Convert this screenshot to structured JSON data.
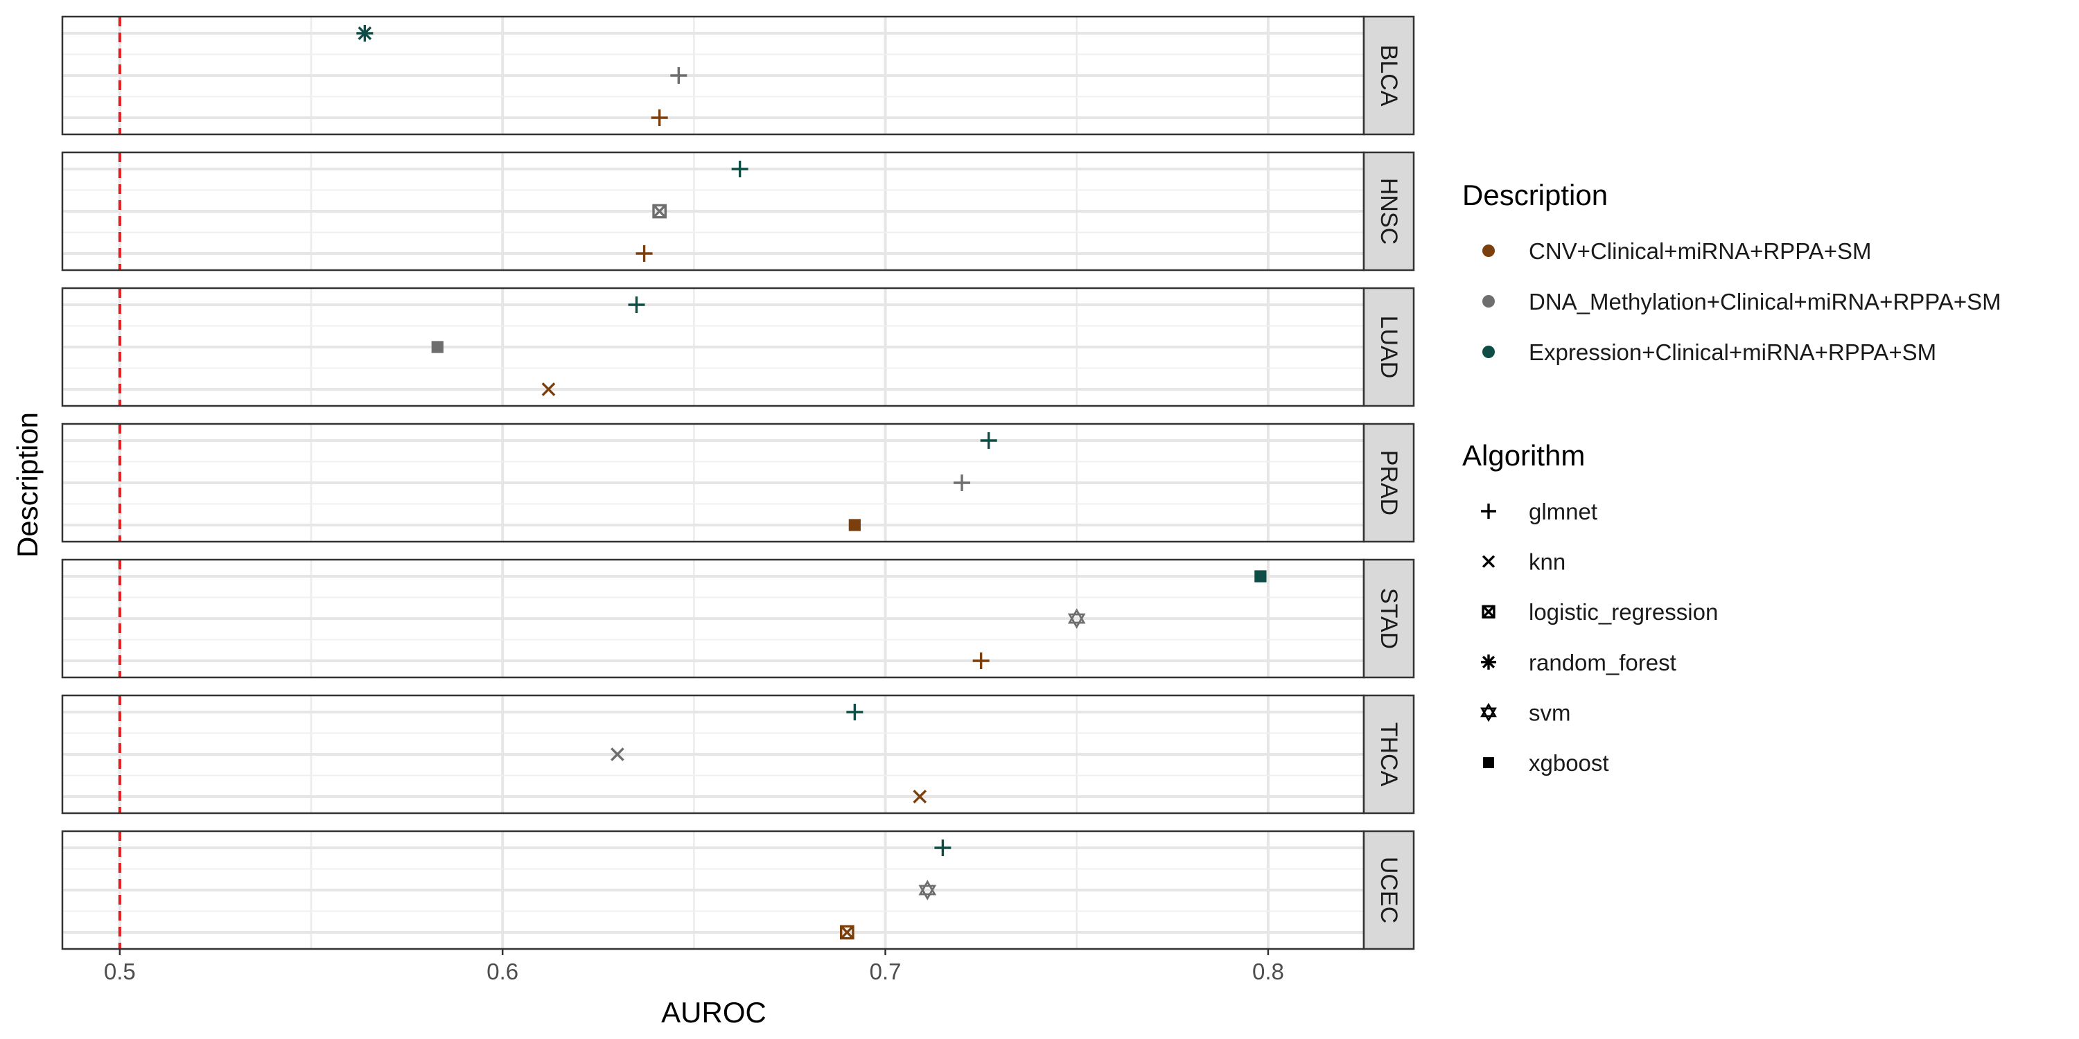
{
  "chart_data": {
    "type": "scatter",
    "facet_by": "cohort",
    "facets": [
      "BLCA",
      "HNSC",
      "LUAD",
      "PRAD",
      "STAD",
      "THCA",
      "UCEC"
    ],
    "xlabel": "AUROC",
    "ylabel": "Description",
    "xlim": [
      0.485,
      0.825
    ],
    "x_ticks": [
      0.5,
      0.6,
      0.7,
      0.8
    ],
    "x_tick_labels": [
      "0.5",
      "0.6",
      "0.7",
      "0.8"
    ],
    "grid": true,
    "reference_line": {
      "x": 0.5,
      "color": "#E41A1C",
      "style": "dashed"
    },
    "description_levels": [
      "CNV+Clinical+miRNA+RPPA+SM",
      "DNA_Methylation+Clinical+miRNA+RPPA+SM",
      "Expression+Clinical+miRNA+RPPA+SM"
    ],
    "colors": {
      "CNV+Clinical+miRNA+RPPA+SM": "#7B3F0E",
      "DNA_Methylation+Clinical+miRNA+RPPA+SM": "#6E6E6E",
      "Expression+Clinical+miRNA+RPPA+SM": "#0E4D45"
    },
    "algorithms": [
      "glmnet",
      "knn",
      "logistic_regression",
      "random_forest",
      "svm",
      "xgboost"
    ],
    "points": [
      {
        "facet": "BLCA",
        "description": "Expression+Clinical+miRNA+RPPA+SM",
        "algorithm": "random_forest",
        "auroc": 0.564
      },
      {
        "facet": "BLCA",
        "description": "DNA_Methylation+Clinical+miRNA+RPPA+SM",
        "algorithm": "glmnet",
        "auroc": 0.646
      },
      {
        "facet": "BLCA",
        "description": "CNV+Clinical+miRNA+RPPA+SM",
        "algorithm": "glmnet",
        "auroc": 0.641
      },
      {
        "facet": "HNSC",
        "description": "Expression+Clinical+miRNA+RPPA+SM",
        "algorithm": "glmnet",
        "auroc": 0.662
      },
      {
        "facet": "HNSC",
        "description": "DNA_Methylation+Clinical+miRNA+RPPA+SM",
        "algorithm": "logistic_regression",
        "auroc": 0.641
      },
      {
        "facet": "HNSC",
        "description": "CNV+Clinical+miRNA+RPPA+SM",
        "algorithm": "glmnet",
        "auroc": 0.637
      },
      {
        "facet": "LUAD",
        "description": "Expression+Clinical+miRNA+RPPA+SM",
        "algorithm": "glmnet",
        "auroc": 0.635
      },
      {
        "facet": "LUAD",
        "description": "DNA_Methylation+Clinical+miRNA+RPPA+SM",
        "algorithm": "xgboost",
        "auroc": 0.583
      },
      {
        "facet": "LUAD",
        "description": "CNV+Clinical+miRNA+RPPA+SM",
        "algorithm": "knn",
        "auroc": 0.612
      },
      {
        "facet": "PRAD",
        "description": "Expression+Clinical+miRNA+RPPA+SM",
        "algorithm": "glmnet",
        "auroc": 0.727
      },
      {
        "facet": "PRAD",
        "description": "DNA_Methylation+Clinical+miRNA+RPPA+SM",
        "algorithm": "glmnet",
        "auroc": 0.72
      },
      {
        "facet": "PRAD",
        "description": "CNV+Clinical+miRNA+RPPA+SM",
        "algorithm": "xgboost",
        "auroc": 0.692
      },
      {
        "facet": "STAD",
        "description": "Expression+Clinical+miRNA+RPPA+SM",
        "algorithm": "xgboost",
        "auroc": 0.798
      },
      {
        "facet": "STAD",
        "description": "DNA_Methylation+Clinical+miRNA+RPPA+SM",
        "algorithm": "svm",
        "auroc": 0.75
      },
      {
        "facet": "STAD",
        "description": "CNV+Clinical+miRNA+RPPA+SM",
        "algorithm": "glmnet",
        "auroc": 0.725
      },
      {
        "facet": "THCA",
        "description": "Expression+Clinical+miRNA+RPPA+SM",
        "algorithm": "glmnet",
        "auroc": 0.692
      },
      {
        "facet": "THCA",
        "description": "DNA_Methylation+Clinical+miRNA+RPPA+SM",
        "algorithm": "knn",
        "auroc": 0.63
      },
      {
        "facet": "THCA",
        "description": "CNV+Clinical+miRNA+RPPA+SM",
        "algorithm": "knn",
        "auroc": 0.709
      },
      {
        "facet": "UCEC",
        "description": "Expression+Clinical+miRNA+RPPA+SM",
        "algorithm": "glmnet",
        "auroc": 0.715
      },
      {
        "facet": "UCEC",
        "description": "DNA_Methylation+Clinical+miRNA+RPPA+SM",
        "algorithm": "svm",
        "auroc": 0.711
      },
      {
        "facet": "UCEC",
        "description": "CNV+Clinical+miRNA+RPPA+SM",
        "algorithm": "logistic_regression",
        "auroc": 0.69
      }
    ],
    "legends": [
      {
        "title": "Description",
        "kind": "color",
        "entries": [
          "CNV+Clinical+miRNA+RPPA+SM",
          "DNA_Methylation+Clinical+miRNA+RPPA+SM",
          "Expression+Clinical+miRNA+RPPA+SM"
        ]
      },
      {
        "title": "Algorithm",
        "kind": "shape",
        "entries": [
          "glmnet",
          "knn",
          "logistic_regression",
          "random_forest",
          "svm",
          "xgboost"
        ]
      }
    ],
    "legend_position": "right"
  }
}
